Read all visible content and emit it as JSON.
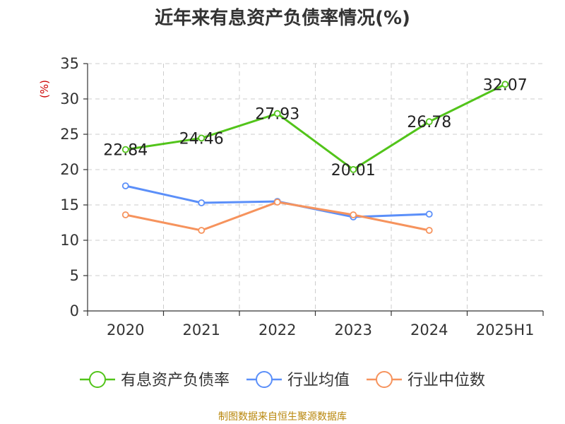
{
  "title": "近年来有息资产负债率情况(%)",
  "source": "制图数据来自恒生聚源数据库",
  "colors": {
    "accent_unit": "#cc0000",
    "source": "#b8860b",
    "grid": "#cccccc",
    "axis": "#333333"
  },
  "chart_data": {
    "type": "line",
    "title": "近年来有息资产负债率情况(%)",
    "ylabel": "(%)",
    "xlabel": "",
    "ylim": [
      0,
      35
    ],
    "yticks": [
      0,
      5,
      10,
      15,
      20,
      25,
      30,
      35
    ],
    "categories": [
      "2020",
      "2021",
      "2022",
      "2023",
      "2024",
      "2025H1"
    ],
    "grid": true,
    "legend_position": "bottom",
    "series": [
      {
        "name": "有息资产负债率",
        "color": "#52c41a",
        "values": [
          22.84,
          24.46,
          27.93,
          20.01,
          26.78,
          32.07
        ],
        "labels": [
          "22.84",
          "24.46",
          "27.93",
          "20.01",
          "26.78",
          "32.07"
        ]
      },
      {
        "name": "行业均值",
        "color": "#5b8ff9",
        "values": [
          17.7,
          15.3,
          15.5,
          13.3,
          13.7,
          null
        ],
        "labels": []
      },
      {
        "name": "行业中位数",
        "color": "#f6935d",
        "values": [
          13.6,
          11.4,
          15.4,
          13.6,
          11.4,
          null
        ],
        "labels": []
      }
    ]
  }
}
